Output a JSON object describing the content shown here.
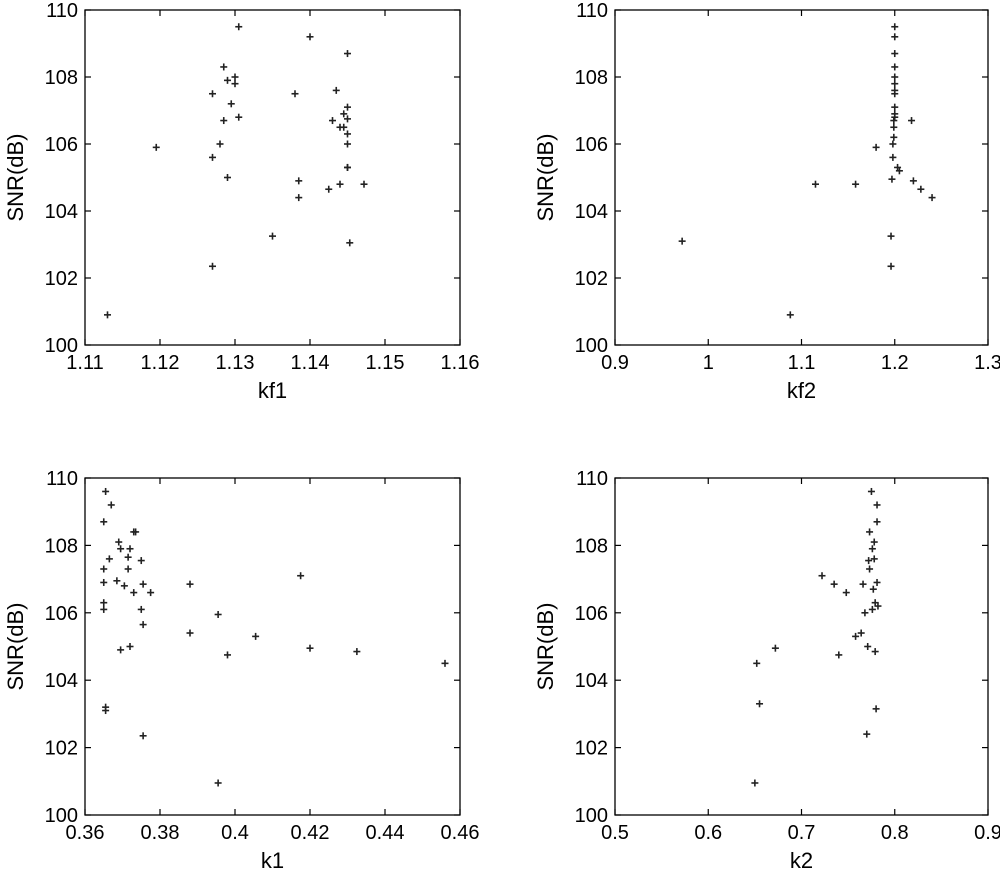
{
  "chart_data": [
    {
      "type": "scatter",
      "xlabel": "kf1",
      "ylabel": "SNR(dB)",
      "xlim": [
        1.11,
        1.16
      ],
      "ylim": [
        100,
        110
      ],
      "xticks": [
        "1.11",
        "1.12",
        "1.13",
        "1.14",
        "1.15",
        "1.16"
      ],
      "yticks": [
        "100",
        "102",
        "104",
        "106",
        "108",
        "110"
      ],
      "points": [
        [
          1.113,
          100.9
        ],
        [
          1.1195,
          105.9
        ],
        [
          1.127,
          102.35
        ],
        [
          1.127,
          105.6
        ],
        [
          1.127,
          107.5
        ],
        [
          1.128,
          106.0
        ],
        [
          1.1285,
          108.3
        ],
        [
          1.1285,
          106.7
        ],
        [
          1.129,
          107.9
        ],
        [
          1.129,
          105.0
        ],
        [
          1.1295,
          107.2
        ],
        [
          1.13,
          108.0
        ],
        [
          1.13,
          107.8
        ],
        [
          1.1305,
          106.8
        ],
        [
          1.1305,
          109.5
        ],
        [
          1.135,
          103.25
        ],
        [
          1.138,
          107.5
        ],
        [
          1.1385,
          104.4
        ],
        [
          1.1385,
          104.9
        ],
        [
          1.14,
          109.2
        ],
        [
          1.1425,
          104.65
        ],
        [
          1.143,
          106.7
        ],
        [
          1.1435,
          107.6
        ],
        [
          1.144,
          104.8
        ],
        [
          1.144,
          106.5
        ],
        [
          1.1445,
          106.9
        ],
        [
          1.1445,
          106.5
        ],
        [
          1.145,
          108.7
        ],
        [
          1.145,
          105.3
        ],
        [
          1.145,
          106.3
        ],
        [
          1.145,
          106.0
        ],
        [
          1.145,
          107.1
        ],
        [
          1.145,
          106.75
        ],
        [
          1.145,
          105.3
        ],
        [
          1.1453,
          103.05
        ],
        [
          1.1472,
          104.8
        ]
      ]
    },
    {
      "type": "scatter",
      "xlabel": "kf2",
      "ylabel": "SNR(dB)",
      "xlim": [
        0.9,
        1.3
      ],
      "ylim": [
        100,
        110
      ],
      "xticks": [
        "0.9",
        "1",
        "1.1",
        "1.2",
        "1.3"
      ],
      "yticks": [
        "100",
        "102",
        "104",
        "106",
        "108",
        "110"
      ],
      "points": [
        [
          0.972,
          103.1
        ],
        [
          1.088,
          100.9
        ],
        [
          1.115,
          104.8
        ],
        [
          1.158,
          104.8
        ],
        [
          1.18,
          105.9
        ],
        [
          1.196,
          102.35
        ],
        [
          1.196,
          103.25
        ],
        [
          1.197,
          104.95
        ],
        [
          1.198,
          105.6
        ],
        [
          1.198,
          106.0
        ],
        [
          1.199,
          106.2
        ],
        [
          1.199,
          106.5
        ],
        [
          1.199,
          106.7
        ],
        [
          1.2,
          106.8
        ],
        [
          1.2,
          106.9
        ],
        [
          1.2,
          107.1
        ],
        [
          1.2,
          107.5
        ],
        [
          1.2,
          107.6
        ],
        [
          1.2,
          107.8
        ],
        [
          1.2,
          108.0
        ],
        [
          1.2,
          108.3
        ],
        [
          1.2,
          108.7
        ],
        [
          1.2,
          109.2
        ],
        [
          1.2,
          109.5
        ],
        [
          1.203,
          105.3
        ],
        [
          1.205,
          105.2
        ],
        [
          1.218,
          106.7
        ],
        [
          1.22,
          104.9
        ],
        [
          1.228,
          104.65
        ],
        [
          1.24,
          104.4
        ]
      ]
    },
    {
      "type": "scatter",
      "xlabel": "k1",
      "ylabel": "SNR(dB)",
      "xlim": [
        0.36,
        0.46
      ],
      "ylim": [
        100,
        110
      ],
      "xticks": [
        "0.36",
        "0.38",
        "0.4",
        "0.42",
        "0.44",
        "0.46"
      ],
      "yticks": [
        "100",
        "102",
        "104",
        "106",
        "108",
        "110"
      ],
      "points": [
        [
          0.3655,
          109.6
        ],
        [
          0.365,
          108.7
        ],
        [
          0.365,
          107.3
        ],
        [
          0.365,
          106.9
        ],
        [
          0.365,
          106.3
        ],
        [
          0.365,
          106.1
        ],
        [
          0.3655,
          103.2
        ],
        [
          0.3655,
          103.1
        ],
        [
          0.3665,
          107.6
        ],
        [
          0.367,
          109.2
        ],
        [
          0.3685,
          106.95
        ],
        [
          0.369,
          108.1
        ],
        [
          0.3695,
          107.9
        ],
        [
          0.3695,
          104.9
        ],
        [
          0.3705,
          106.8
        ],
        [
          0.3715,
          107.3
        ],
        [
          0.3715,
          107.65
        ],
        [
          0.372,
          107.9
        ],
        [
          0.372,
          105.0
        ],
        [
          0.373,
          106.6
        ],
        [
          0.373,
          108.4
        ],
        [
          0.3735,
          108.4
        ],
        [
          0.375,
          107.55
        ],
        [
          0.375,
          106.1
        ],
        [
          0.3755,
          106.85
        ],
        [
          0.3755,
          105.65
        ],
        [
          0.3755,
          102.35
        ],
        [
          0.3775,
          106.6
        ],
        [
          0.388,
          106.85
        ],
        [
          0.388,
          105.4
        ],
        [
          0.3955,
          105.95
        ],
        [
          0.3955,
          100.95
        ],
        [
          0.398,
          104.75
        ],
        [
          0.4055,
          105.3
        ],
        [
          0.4175,
          107.1
        ],
        [
          0.42,
          104.95
        ],
        [
          0.4325,
          104.85
        ],
        [
          0.456,
          104.5
        ]
      ]
    },
    {
      "type": "scatter",
      "xlabel": "k2",
      "ylabel": "SNR(dB)",
      "xlim": [
        0.5,
        0.9
      ],
      "ylim": [
        100,
        110
      ],
      "xticks": [
        "0.5",
        "0.6",
        "0.7",
        "0.8",
        "0.9"
      ],
      "yticks": [
        "100",
        "102",
        "104",
        "106",
        "108",
        "110"
      ],
      "points": [
        [
          0.65,
          100.95
        ],
        [
          0.652,
          104.5
        ],
        [
          0.655,
          103.3
        ],
        [
          0.672,
          104.95
        ],
        [
          0.722,
          107.1
        ],
        [
          0.735,
          106.85
        ],
        [
          0.74,
          104.75
        ],
        [
          0.748,
          106.6
        ],
        [
          0.758,
          105.3
        ],
        [
          0.764,
          105.4
        ],
        [
          0.766,
          106.85
        ],
        [
          0.768,
          106.0
        ],
        [
          0.77,
          102.4
        ],
        [
          0.771,
          105.0
        ],
        [
          0.772,
          107.55
        ],
        [
          0.773,
          108.4
        ],
        [
          0.773,
          107.3
        ],
        [
          0.775,
          109.6
        ],
        [
          0.776,
          106.1
        ],
        [
          0.776,
          107.9
        ],
        [
          0.777,
          106.7
        ],
        [
          0.778,
          108.1
        ],
        [
          0.778,
          107.6
        ],
        [
          0.779,
          106.3
        ],
        [
          0.779,
          104.85
        ],
        [
          0.78,
          103.15
        ],
        [
          0.781,
          106.9
        ],
        [
          0.781,
          108.7
        ],
        [
          0.781,
          109.2
        ],
        [
          0.782,
          106.2
        ]
      ]
    }
  ]
}
